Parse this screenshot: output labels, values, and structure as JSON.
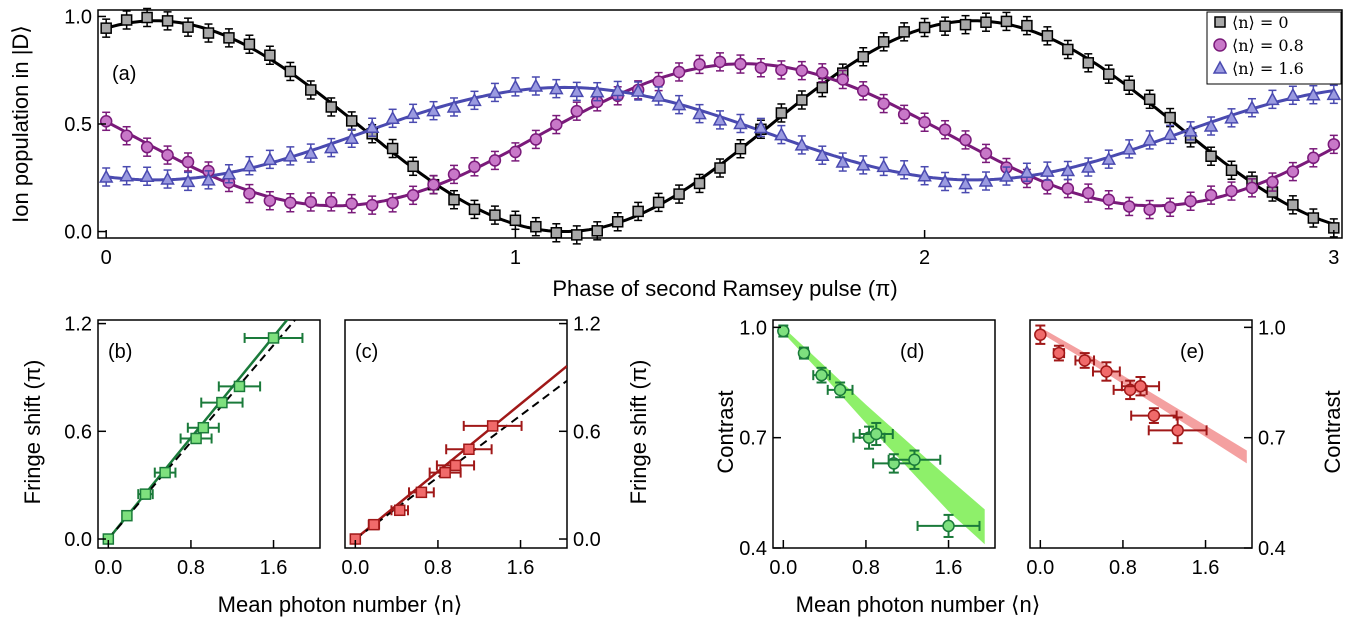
{
  "chart_data": [
    {
      "panel": "a",
      "type": "scatter",
      "panel_label": "(a)",
      "xlabel": "Phase of second Ramsey pulse (π)",
      "ylabel": "Ion population in |D⟩",
      "xlim": [
        -0.02,
        3.02
      ],
      "ylim": [
        -0.03,
        1.03
      ],
      "xticks": [
        "0",
        "1",
        "2",
        "3"
      ],
      "yticks": [
        "0.0",
        "0.5",
        "1.0"
      ],
      "legend": {
        "placement": "top-right",
        "entries": [
          "⟨n⟩ = 0",
          "⟨n⟩ = 0.8",
          "⟨n⟩ = 1.6"
        ]
      },
      "series": [
        {
          "name": "⟨n⟩ = 0",
          "marker": "square",
          "fill": "#a8a8a8",
          "color": "#000000",
          "fit": {
            "a": 0.49,
            "b": 0.49,
            "phase0": 2.12,
            "shape": "cos"
          }
        },
        {
          "name": "⟨n⟩ = 0.8",
          "marker": "circle",
          "fill": "#c878c8",
          "color": "#7a1a7a",
          "fit": {
            "a": 0.45,
            "b": 0.33,
            "phase0": 1.56,
            "shape": "cos"
          }
        },
        {
          "name": "⟨n⟩ = 1.6",
          "marker": "triangle",
          "fill": "#9a9ae0",
          "color": "#4a4ab0",
          "fit": {
            "a": 0.455,
            "b": 0.215,
            "phase0": 1.12,
            "shape": "cos"
          }
        }
      ]
    },
    {
      "panel": "b",
      "type": "scatter",
      "panel_label": "(b)",
      "ylabel": "Fringe shift (π)",
      "xlim": [
        -0.1,
        2.05
      ],
      "ylim": [
        -0.05,
        1.22
      ],
      "xticks": [
        "0.0",
        "0.8",
        "1.6"
      ],
      "yticks": [
        "0.0",
        "0.6",
        "1.2"
      ],
      "points": [
        {
          "x": 0.0,
          "y": 0.0,
          "xerr": 0.03
        },
        {
          "x": 0.18,
          "y": 0.13,
          "xerr": 0.04
        },
        {
          "x": 0.36,
          "y": 0.25,
          "xerr": 0.07
        },
        {
          "x": 0.55,
          "y": 0.37,
          "xerr": 0.1
        },
        {
          "x": 0.85,
          "y": 0.56,
          "xerr": 0.15
        },
        {
          "x": 0.92,
          "y": 0.62,
          "xerr": 0.15
        },
        {
          "x": 1.1,
          "y": 0.76,
          "xerr": 0.2
        },
        {
          "x": 1.27,
          "y": 0.85,
          "xerr": 0.2
        },
        {
          "x": 1.6,
          "y": 1.12,
          "xerr": 0.28
        }
      ],
      "fit_slope": 0.705,
      "dashed_slope": 0.675,
      "color": "#1a7a3a",
      "fill": "#7ee07e"
    },
    {
      "panel": "c",
      "type": "scatter",
      "panel_label": "(c)",
      "ylabel": "Fringe shift (π)",
      "xlim": [
        -0.1,
        2.05
      ],
      "ylim": [
        -0.05,
        1.22
      ],
      "xticks": [
        "0.0",
        "0.8",
        "1.6"
      ],
      "yticks": [
        "0.0",
        "0.6",
        "1.2"
      ],
      "points": [
        {
          "x": 0.0,
          "y": 0.0,
          "xerr": 0.03
        },
        {
          "x": 0.18,
          "y": 0.08,
          "xerr": 0.05
        },
        {
          "x": 0.43,
          "y": 0.16,
          "xerr": 0.08
        },
        {
          "x": 0.64,
          "y": 0.26,
          "xerr": 0.12
        },
        {
          "x": 0.87,
          "y": 0.37,
          "xerr": 0.15
        },
        {
          "x": 0.97,
          "y": 0.41,
          "xerr": 0.18
        },
        {
          "x": 1.1,
          "y": 0.5,
          "xerr": 0.22
        },
        {
          "x": 1.33,
          "y": 0.63,
          "xerr": 0.28
        }
      ],
      "fit_slope": 0.47,
      "dashed_slope": 0.43,
      "color": "#a01818",
      "fill": "#f06a6a"
    },
    {
      "panel": "d",
      "type": "scatter",
      "panel_label": "(d)",
      "ylabel": "Contrast",
      "xlim": [
        -0.1,
        2.05
      ],
      "ylim": [
        0.4,
        1.02
      ],
      "xticks": [
        "0.0",
        "0.8",
        "1.6"
      ],
      "yticks": [
        "0.4",
        "0.7",
        "1.0"
      ],
      "points": [
        {
          "x": 0.0,
          "y": 0.99,
          "xerr": 0.03,
          "yerr": 0.015
        },
        {
          "x": 0.2,
          "y": 0.93,
          "xerr": 0.04,
          "yerr": 0.015
        },
        {
          "x": 0.37,
          "y": 0.87,
          "xerr": 0.08,
          "yerr": 0.02
        },
        {
          "x": 0.55,
          "y": 0.83,
          "xerr": 0.12,
          "yerr": 0.02
        },
        {
          "x": 0.83,
          "y": 0.7,
          "xerr": 0.15,
          "yerr": 0.03
        },
        {
          "x": 0.9,
          "y": 0.71,
          "xerr": 0.16,
          "yerr": 0.03
        },
        {
          "x": 1.07,
          "y": 0.63,
          "xerr": 0.2,
          "yerr": 0.025
        },
        {
          "x": 1.27,
          "y": 0.64,
          "xerr": 0.25,
          "yerr": 0.025
        },
        {
          "x": 1.6,
          "y": 0.46,
          "xerr": 0.3,
          "yerr": 0.03
        }
      ],
      "band": {
        "x": [
          0.0,
          0.4,
          0.8,
          1.2,
          1.6,
          1.95
        ],
        "upper": [
          1.0,
          0.895,
          0.79,
          0.69,
          0.59,
          0.505
        ],
        "lower": [
          0.985,
          0.865,
          0.74,
          0.62,
          0.5,
          0.41
        ]
      },
      "color": "#1a7a3a",
      "fill": "#7ee07e",
      "band_color": "#8ef06a"
    },
    {
      "panel": "e",
      "type": "scatter",
      "panel_label": "(e)",
      "ylabel": "Contrast",
      "xlim": [
        -0.1,
        2.05
      ],
      "ylim": [
        0.4,
        1.02
      ],
      "xticks": [
        "0.0",
        "0.8",
        "1.6"
      ],
      "yticks": [
        "0.4",
        "0.7",
        "1.0"
      ],
      "points": [
        {
          "x": 0.0,
          "y": 0.98,
          "xerr": 0.03,
          "yerr": 0.025
        },
        {
          "x": 0.18,
          "y": 0.93,
          "xerr": 0.05,
          "yerr": 0.02
        },
        {
          "x": 0.43,
          "y": 0.91,
          "xerr": 0.09,
          "yerr": 0.02
        },
        {
          "x": 0.64,
          "y": 0.88,
          "xerr": 0.13,
          "yerr": 0.025
        },
        {
          "x": 0.87,
          "y": 0.83,
          "xerr": 0.16,
          "yerr": 0.025
        },
        {
          "x": 0.97,
          "y": 0.84,
          "xerr": 0.18,
          "yerr": 0.025
        },
        {
          "x": 1.1,
          "y": 0.76,
          "xerr": 0.22,
          "yerr": 0.02
        },
        {
          "x": 1.33,
          "y": 0.72,
          "xerr": 0.28,
          "yerr": 0.035
        }
      ],
      "band": {
        "x": [
          0.0,
          0.5,
          1.0,
          1.5,
          2.0
        ],
        "upper": [
          1.0,
          0.92,
          0.835,
          0.75,
          0.665
        ],
        "lower": [
          0.985,
          0.9,
          0.81,
          0.72,
          0.63
        ]
      },
      "color": "#a01818",
      "fill": "#f06a6a",
      "band_color": "#f4a0a0"
    }
  ],
  "bottom_xlabel_left": "Mean photon number ⟨n⟩",
  "bottom_xlabel_right": "Mean photon number ⟨n⟩"
}
